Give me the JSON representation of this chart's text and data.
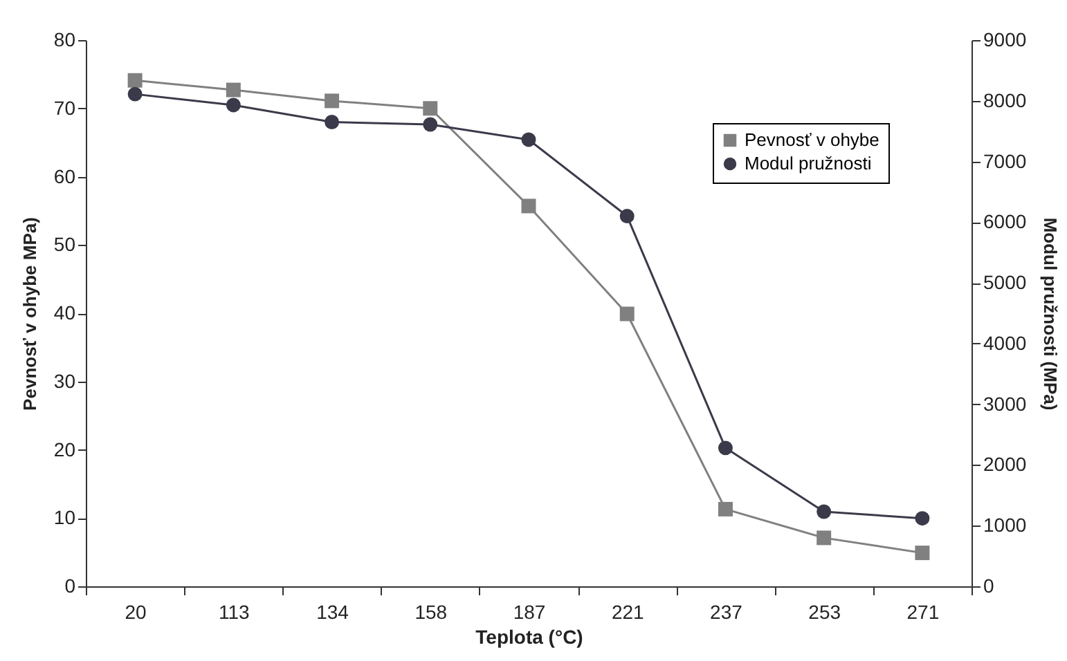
{
  "chart_data": {
    "type": "line",
    "xlabel": "Teplota (°C)",
    "ylabel": "Pevnosť v ohybe MPa)",
    "y2label": "Modul pružnosti (MPa)",
    "categories": [
      "20",
      "113",
      "134",
      "158",
      "187",
      "221",
      "237",
      "253",
      "271"
    ],
    "series": [
      {
        "name": "Pevnosť v ohybe",
        "color": "#808080",
        "marker": "square",
        "values": [
          74.1,
          72.7,
          71.1,
          70,
          55.7,
          39.9,
          11.3,
          7.1,
          4.9
        ]
      },
      {
        "name": "Modul pružnosti",
        "color": "#3a3a4a",
        "marker": "circle",
        "axis": "y2",
        "values": [
          8110,
          7930,
          7650,
          7610,
          7360,
          6100,
          2280,
          1230,
          1120
        ]
      }
    ],
    "ylim": [
      0,
      80
    ],
    "yticks": [
      0,
      10,
      20,
      30,
      40,
      50,
      60,
      70,
      80
    ],
    "y2lim": [
      0,
      9000
    ],
    "y2ticks": [
      0,
      1000,
      2000,
      3000,
      4000,
      5000,
      6000,
      7000,
      8000,
      9000
    ],
    "grid": false,
    "legend": "top right"
  }
}
